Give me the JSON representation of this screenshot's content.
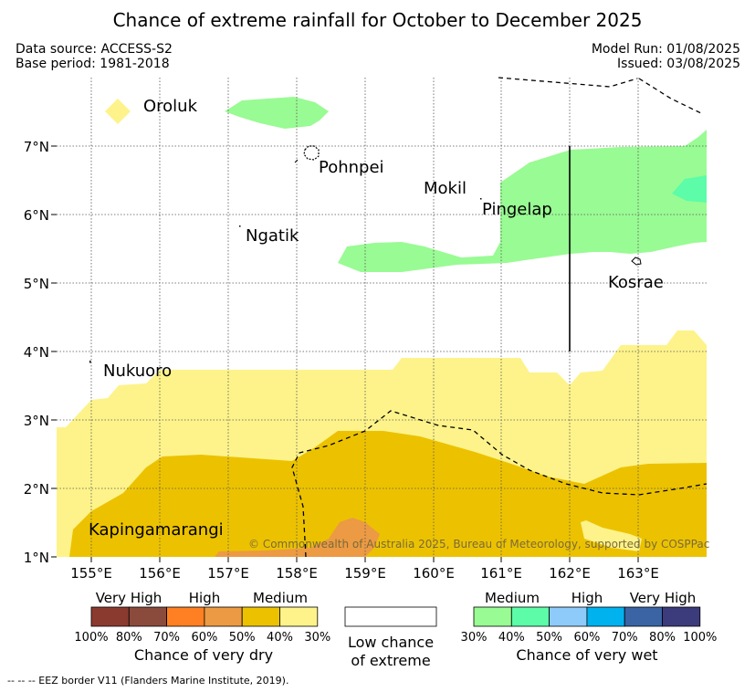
{
  "header": {
    "title": "Chance of extreme rainfall for October to December 2025",
    "data_source": "Data source: ACCESS-S2",
    "base_period": "Base period: 1981-2018",
    "model_run": "Model Run: 01/08/2025",
    "issued": "Issued: 03/08/2025"
  },
  "axes": {
    "lat_ticks": [
      "1°N",
      "2°N",
      "3°N",
      "4°N",
      "5°N",
      "6°N",
      "7°N"
    ],
    "lon_ticks": [
      "155°E",
      "156°E",
      "157°E",
      "158°E",
      "159°E",
      "160°E",
      "161°E",
      "162°E",
      "163°E"
    ]
  },
  "places": {
    "oroluk": "Oroluk",
    "pohnpei": "Pohnpei",
    "mokil": "Mokil",
    "pingelap": "Pingelap",
    "ngatik": "Ngatik",
    "kosrae": "Kosrae",
    "nukuoro": "Nukuoro",
    "kapingamarangi": "Kapingamarangi"
  },
  "copyright": "© Commonwealth of Australia 2025, Bureau of Meteorology, supported by COSPPac",
  "legend": {
    "dry": {
      "categories": [
        "Very High",
        "High",
        "Medium"
      ],
      "colors": [
        "#8b3a2f",
        "#8a4b3c",
        "#ff8022",
        "#ec9a43",
        "#ecc200",
        "#fdf38a"
      ],
      "ticks": [
        "100%",
        "80%",
        "70%",
        "60%",
        "50%",
        "40%",
        "30%"
      ],
      "title": "Chance of very dry"
    },
    "low": {
      "title_line1": "Low chance",
      "title_line2": "of extreme"
    },
    "wet": {
      "categories": [
        "Medium",
        "High",
        "Very High"
      ],
      "colors": [
        "#99fb93",
        "#5cfca9",
        "#8ecbfa",
        "#00b2ee",
        "#3a64a4",
        "#3c3b7b"
      ],
      "ticks": [
        "30%",
        "40%",
        "50%",
        "60%",
        "70%",
        "80%",
        "100%"
      ],
      "title": "Chance of very wet"
    }
  },
  "eez_note": "--  --  -- EEZ border V11 (Flanders Marine Institute, 2019)."
}
